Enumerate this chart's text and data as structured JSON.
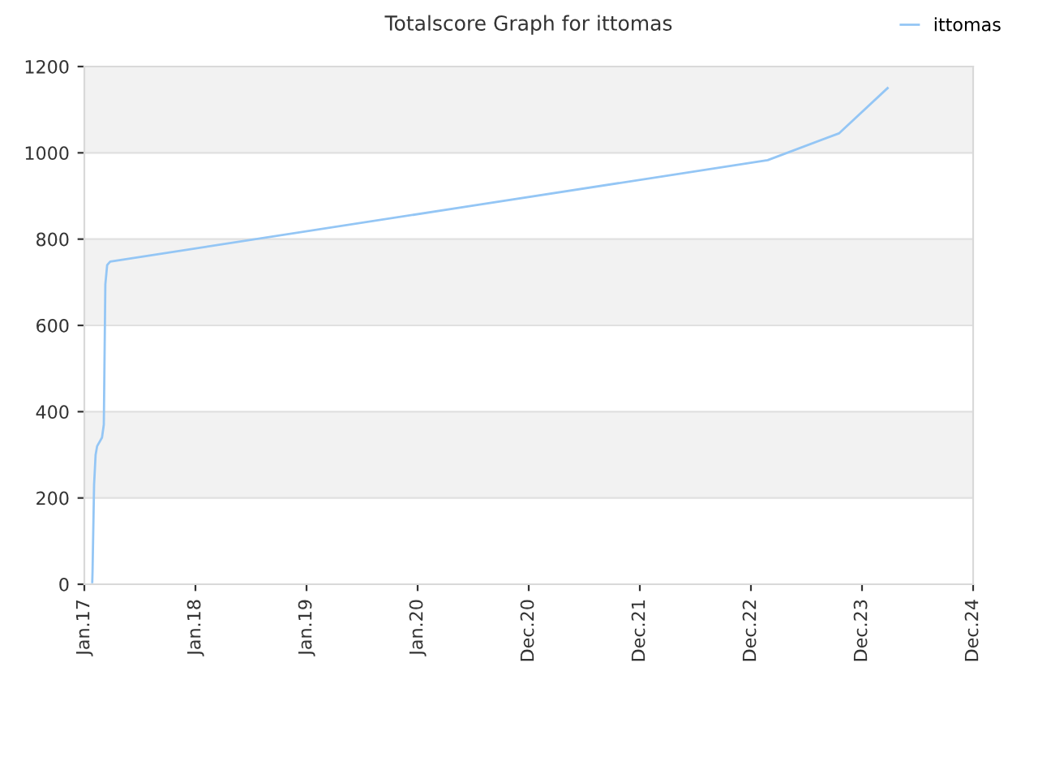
{
  "chart_data": {
    "type": "line",
    "title": "Totalscore Graph for ittomas",
    "series": [
      {
        "name": "ittomas",
        "color": "#94c6f5",
        "x": [
          "2017-01-27",
          "2017-01-28",
          "2017-02-02",
          "2017-02-07",
          "2017-02-12",
          "2017-02-28",
          "2017-03-06",
          "2017-03-11",
          "2017-03-17",
          "2017-03-27",
          "2023-02-24",
          "2023-10-16",
          "2024-03-24"
        ],
        "values": [
          5,
          30,
          230,
          300,
          320,
          340,
          370,
          695,
          740,
          748,
          983,
          1045,
          1150
        ]
      }
    ],
    "xlim": [
      "2017-01-01",
      "2024-12-30"
    ],
    "xticks": [
      {
        "value": "2017-01-01",
        "label": "Jan.17"
      },
      {
        "value": "2018-01-01",
        "label": "Jan.18"
      },
      {
        "value": "2019-01-01",
        "label": "Jan.19"
      },
      {
        "value": "2020-01-01",
        "label": "Jan.20"
      },
      {
        "value": "2020-12-31",
        "label": "Dec.20"
      },
      {
        "value": "2021-12-31",
        "label": "Dec.21"
      },
      {
        "value": "2022-12-31",
        "label": "Dec.22"
      },
      {
        "value": "2023-12-31",
        "label": "Dec.23"
      },
      {
        "value": "2024-12-30",
        "label": "Dec.24"
      }
    ],
    "ylim": [
      0,
      1200
    ],
    "yticks": [
      0,
      200,
      400,
      600,
      800,
      1000,
      1200
    ],
    "bands": [
      {
        "axis": "y",
        "from": 200,
        "to": 400,
        "color": "#f2f2f2"
      },
      {
        "axis": "y",
        "from": 600,
        "to": 800,
        "color": "#f2f2f2"
      },
      {
        "axis": "y",
        "from": 1000,
        "to": 1200,
        "color": "#f2f2f2"
      }
    ],
    "grid": "y",
    "legend": "top right",
    "marker": "none",
    "line_style": "solid"
  }
}
